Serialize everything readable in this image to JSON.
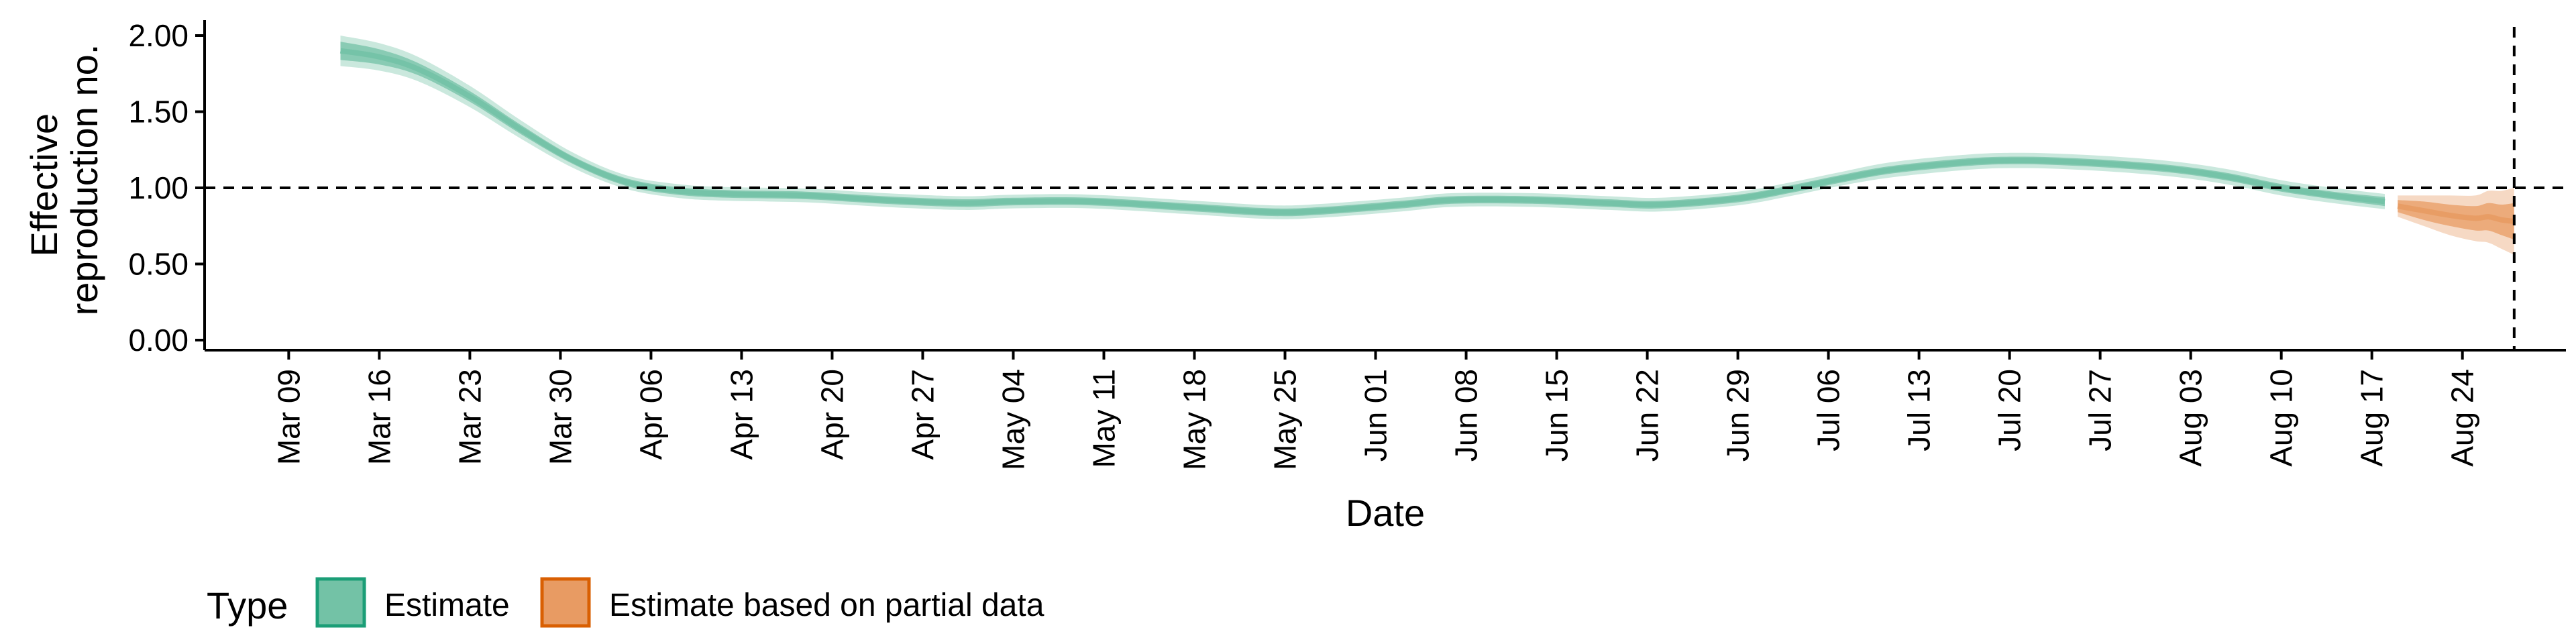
{
  "chart_data": {
    "type": "area",
    "title": "",
    "xlabel": "Date",
    "ylabel": "Effective reproduction no.",
    "ylabel_lines": [
      "Effective",
      "reproduction no."
    ],
    "ylim": [
      0,
      2.1
    ],
    "y_ticks": [
      "0.00",
      "0.50",
      "1.00",
      "1.50",
      "2.00"
    ],
    "x_ticks": [
      "Mar 09",
      "Mar 16",
      "Mar 23",
      "Mar 30",
      "Apr 06",
      "Apr 13",
      "Apr 20",
      "Apr 27",
      "May 04",
      "May 11",
      "May 18",
      "May 25",
      "Jun 01",
      "Jun 08",
      "Jun 15",
      "Jun 22",
      "Jun 29",
      "Jul 06",
      "Jul 13",
      "Jul 20",
      "Jul 27",
      "Aug 03",
      "Aug 10",
      "Aug 17",
      "Aug 24"
    ],
    "xlim_days": [
      -6.5,
      176
    ],
    "reference_line_y": 1.0,
    "vertical_line_day": 172,
    "grid": false,
    "legend": {
      "title": "Type",
      "position": "bottom-left",
      "entries": [
        {
          "label": "Estimate",
          "fill": "#73c2a6",
          "stroke": "#1b9e77"
        },
        {
          "label": "Estimate based on partial data",
          "fill": "#e89b63",
          "stroke": "#d95f02"
        }
      ]
    },
    "series": [
      {
        "name": "Estimate",
        "color": "#1b9e77",
        "days": [
          4,
          7,
          10,
          14,
          18,
          22,
          26,
          30,
          34,
          40,
          46,
          52,
          56,
          62,
          70,
          76,
          80,
          86,
          90,
          96,
          102,
          106,
          112,
          116,
          120,
          124,
          130,
          134,
          138,
          142,
          146,
          150,
          154,
          158,
          162
        ],
        "median": [
          1.9,
          1.86,
          1.78,
          1.6,
          1.38,
          1.18,
          1.04,
          0.98,
          0.96,
          0.95,
          0.92,
          0.9,
          0.91,
          0.91,
          0.87,
          0.84,
          0.85,
          0.89,
          0.92,
          0.92,
          0.9,
          0.89,
          0.93,
          0.99,
          1.06,
          1.12,
          1.17,
          1.18,
          1.17,
          1.15,
          1.12,
          1.07,
          1.0,
          0.95,
          0.91
        ],
        "inner_half_width": [
          0.06,
          0.05,
          0.04,
          0.035,
          0.03,
          0.025,
          0.025,
          0.025,
          0.025,
          0.025,
          0.025,
          0.025,
          0.025,
          0.025,
          0.025,
          0.025,
          0.025,
          0.025,
          0.025,
          0.025,
          0.025,
          0.025,
          0.025,
          0.025,
          0.025,
          0.025,
          0.025,
          0.025,
          0.025,
          0.025,
          0.025,
          0.025,
          0.025,
          0.025,
          0.03
        ],
        "outer_half_width": [
          0.1,
          0.09,
          0.08,
          0.07,
          0.06,
          0.05,
          0.045,
          0.045,
          0.045,
          0.045,
          0.045,
          0.045,
          0.045,
          0.045,
          0.045,
          0.045,
          0.045,
          0.045,
          0.045,
          0.045,
          0.045,
          0.045,
          0.045,
          0.045,
          0.045,
          0.05,
          0.05,
          0.05,
          0.05,
          0.05,
          0.05,
          0.05,
          0.05,
          0.05,
          0.05
        ]
      },
      {
        "name": "Estimate based on partial data",
        "color": "#d95f02",
        "days": [
          163,
          165,
          167,
          169,
          170,
          171,
          172
        ],
        "median": [
          0.88,
          0.85,
          0.82,
          0.8,
          0.81,
          0.79,
          0.78
        ],
        "inner_half_width": [
          0.04,
          0.06,
          0.07,
          0.08,
          0.09,
          0.1,
          0.12
        ],
        "outer_half_width": [
          0.07,
          0.1,
          0.13,
          0.15,
          0.17,
          0.19,
          0.22
        ]
      }
    ]
  }
}
